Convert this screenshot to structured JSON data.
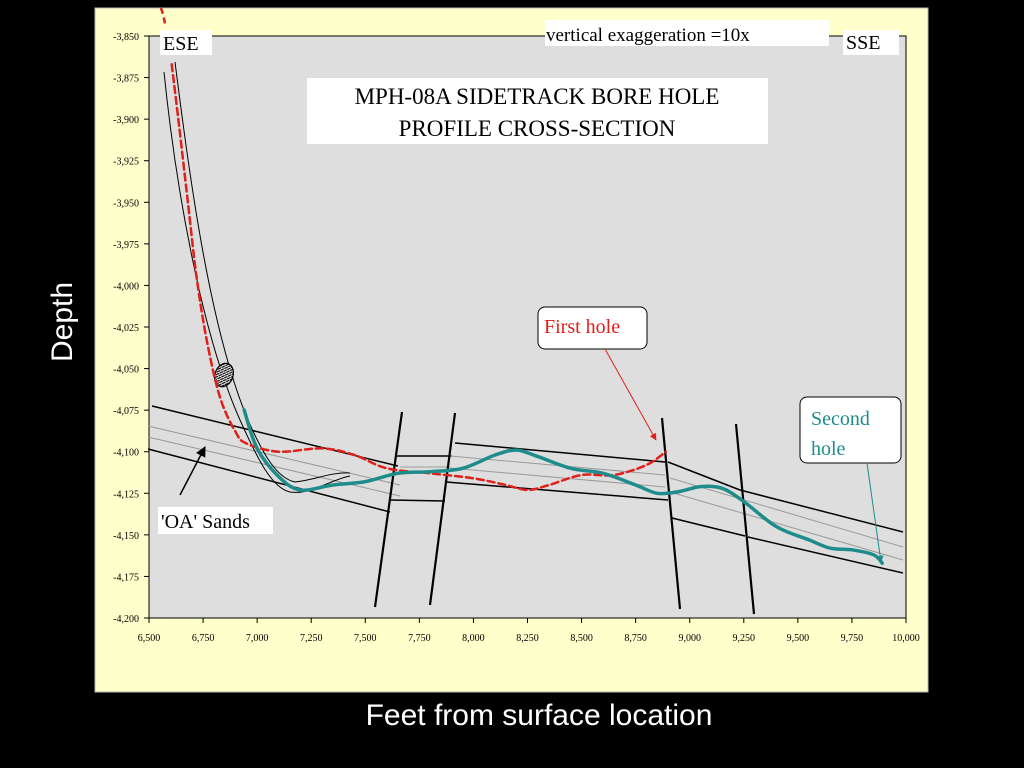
{
  "slide": {
    "ylabel": "Depth",
    "xlabel": "Feet from surface location"
  },
  "colors": {
    "background": "#000000",
    "panel": "#FFFFCC",
    "plot_area": "#DEDEDE",
    "first_hole": "#E0201A",
    "second_hole": "#1F8C8C",
    "formation": "#000000"
  },
  "chart_data": {
    "type": "line",
    "title": "MPH-08A SIDETRACK BORE HOLE PROFILE CROSS-SECTION",
    "title_lines": [
      "MPH-08A SIDETRACK BORE HOLE",
      "PROFILE CROSS-SECTION"
    ],
    "xlabel": "Feet from surface location",
    "ylabel": "Depth",
    "xlim": [
      6500,
      10000
    ],
    "ylim": [
      -4200,
      -3850
    ],
    "x_ticks": [
      6500,
      6750,
      7000,
      7250,
      7500,
      7750,
      8000,
      8250,
      8500,
      8750,
      9000,
      9250,
      9500,
      9750,
      10000
    ],
    "x_tick_labels": [
      "6,500",
      "6,750",
      "7,000",
      "7,250",
      "7,500",
      "7,750",
      "8,000",
      "8,250",
      "8,500",
      "8,750",
      "9,000",
      "9,250",
      "9,500",
      "9,750",
      "10,000"
    ],
    "y_ticks": [
      -3850,
      -3875,
      -3900,
      -3925,
      -3950,
      -3975,
      -4000,
      -4025,
      -4050,
      -4075,
      -4100,
      -4125,
      -4150,
      -4175,
      -4200
    ],
    "y_tick_labels": [
      "-3,850",
      "-3,875",
      "-3,900",
      "-3,925",
      "-3,950",
      "-3,975",
      "-4,000",
      "-4,025",
      "-4,050",
      "-4,075",
      "-4,100",
      "-4,125",
      "-4,150",
      "-4,175",
      "-4,200"
    ],
    "grid": false,
    "series": [
      {
        "name": "First hole",
        "style": "dashed",
        "color": "#E0201A",
        "points": [
          [
            6605,
            -3867
          ],
          [
            6640,
            -3905
          ],
          [
            6680,
            -3950
          ],
          [
            6720,
            -3995
          ],
          [
            6770,
            -4035
          ],
          [
            6830,
            -4068
          ],
          [
            6900,
            -4088
          ],
          [
            6950,
            -4095
          ],
          [
            7100,
            -4100
          ],
          [
            7300,
            -4098
          ],
          [
            7450,
            -4102
          ],
          [
            7600,
            -4110
          ],
          [
            7800,
            -4113
          ],
          [
            8000,
            -4116
          ],
          [
            8150,
            -4120
          ],
          [
            8250,
            -4123
          ],
          [
            8350,
            -4120
          ],
          [
            8500,
            -4114
          ],
          [
            8650,
            -4114
          ],
          [
            8800,
            -4108
          ],
          [
            8890,
            -4100
          ]
        ]
      },
      {
        "name": "Second hole",
        "style": "solid",
        "color": "#1F8C8C",
        "points": [
          [
            6940,
            -4075
          ],
          [
            7000,
            -4098
          ],
          [
            7100,
            -4115
          ],
          [
            7200,
            -4123
          ],
          [
            7350,
            -4120
          ],
          [
            7500,
            -4118
          ],
          [
            7650,
            -4113
          ],
          [
            7800,
            -4112
          ],
          [
            7950,
            -4110
          ],
          [
            8100,
            -4102
          ],
          [
            8200,
            -4099
          ],
          [
            8300,
            -4103
          ],
          [
            8450,
            -4110
          ],
          [
            8600,
            -4113
          ],
          [
            8750,
            -4120
          ],
          [
            8850,
            -4125
          ],
          [
            8950,
            -4124
          ],
          [
            9050,
            -4121
          ],
          [
            9150,
            -4122
          ],
          [
            9250,
            -4130
          ],
          [
            9400,
            -4145
          ],
          [
            9550,
            -4153
          ],
          [
            9650,
            -4158
          ],
          [
            9750,
            -4159
          ],
          [
            9850,
            -4162
          ],
          [
            9890,
            -4167
          ]
        ]
      }
    ],
    "annotations": [
      {
        "text": "ESE",
        "position": "top-left"
      },
      {
        "text": "SSE",
        "position": "top-right"
      },
      {
        "text": "vertical exaggeration =10x",
        "position": "top"
      },
      {
        "text": "First hole",
        "color": "#E0201A"
      },
      {
        "text": "Second hole",
        "lines": [
          "Second",
          "hole"
        ],
        "color": "#1F8C8C"
      },
      {
        "text": "'OA' Sands"
      }
    ]
  }
}
